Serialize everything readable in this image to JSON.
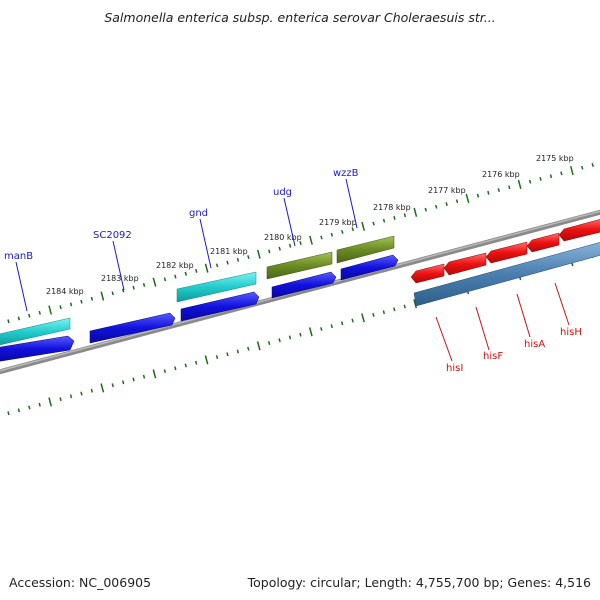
{
  "title": "Salmonella enterica subsp. enterica serovar Choleraesuis str...",
  "footer": {
    "accession": "Accession: NC_006905",
    "topology": "Topology: circular; Length: 4,755,700 bp; Genes: 4,516"
  },
  "colors": {
    "background": "#ffffff",
    "backbone": "#8a8a8a",
    "tick_green": "#1d6b1d",
    "label_blue": "#1a1acc",
    "label_red": "#cc1111",
    "gene_cyan": "#22cccc",
    "gene_blue": "#1111dd",
    "gene_olive": "#6b8c22",
    "gene_red": "#ee1111",
    "gene_steel": "#4a7fb0"
  },
  "scale_labels": [
    "2184 kbp",
    "2183 kbp",
    "2182 kbp",
    "2181 kbp",
    "2180 kbp",
    "2179 kbp",
    "2178 kbp",
    "2177 kbp",
    "2176 kbp",
    "2175 kbp"
  ],
  "genes": [
    {
      "label": "manB",
      "strand": "forward"
    },
    {
      "label": "SC2092",
      "strand": "forward"
    },
    {
      "label": "gnd",
      "strand": "forward"
    },
    {
      "label": "udg",
      "strand": "forward"
    },
    {
      "label": "wzzB",
      "strand": "forward"
    },
    {
      "label": "hisI",
      "strand": "reverse"
    },
    {
      "label": "hisF",
      "strand": "reverse"
    },
    {
      "label": "hisA",
      "strand": "reverse"
    },
    {
      "label": "hisH",
      "strand": "reverse"
    }
  ]
}
